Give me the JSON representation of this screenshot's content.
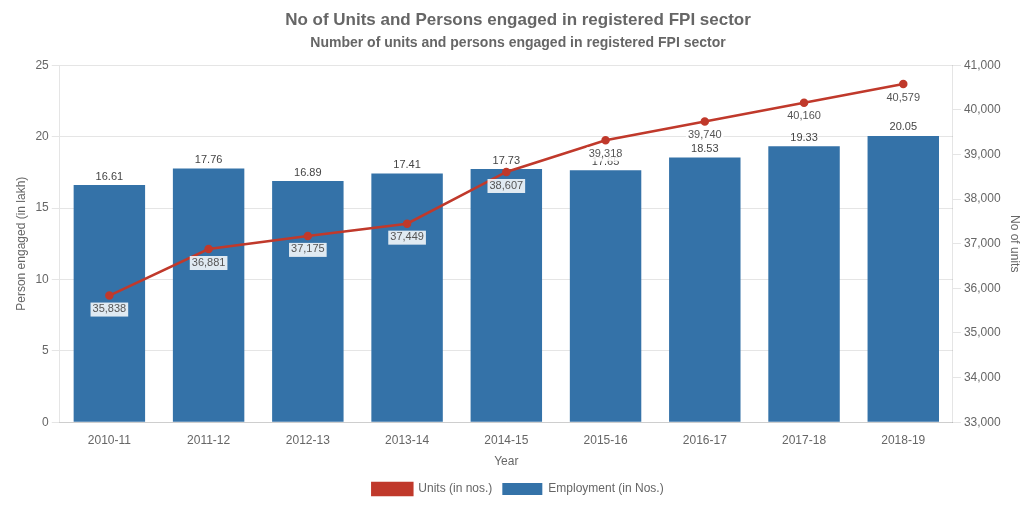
{
  "chart_data": {
    "type": "bar",
    "title": "No of Units and Persons engaged in registered FPI sector",
    "subtitle": "Number of units and persons engaged in registered FPI sector",
    "xlabel": "Year",
    "ylabel": "Person engaged (in lakh)",
    "y2label": "No of units",
    "categories": [
      "2010-11",
      "2011-12",
      "2012-13",
      "2013-14",
      "2014-15",
      "2015-16",
      "2016-17",
      "2017-18",
      "2018-19"
    ],
    "series": [
      {
        "name": "Employment (in Nos.)",
        "type": "bar",
        "color": "#3472A8",
        "values": [
          16.61,
          17.76,
          16.89,
          17.41,
          17.73,
          17.65,
          18.53,
          19.33,
          20.05
        ]
      },
      {
        "name": "Units (in nos.)",
        "type": "line",
        "color": "#C0392B",
        "axis": "y2",
        "values": [
          35838,
          36881,
          37175,
          37449,
          38607,
          39318,
          39740,
          40160,
          40579
        ],
        "value_labels": [
          "35,838",
          "36,881",
          "37,175",
          "37,449",
          "38,607",
          "39,318",
          "39,740",
          "40,160",
          "40,579"
        ]
      }
    ],
    "ylim": [
      0,
      25
    ],
    "yticks": [
      0,
      5,
      10,
      15,
      20,
      25
    ],
    "y2lim": [
      33000,
      41000
    ],
    "y2ticks": [
      {
        "value": 33000,
        "label": "33,000"
      },
      {
        "value": 34000,
        "label": "34,000"
      },
      {
        "value": 35000,
        "label": "35,000"
      },
      {
        "value": 36000,
        "label": "36,000"
      },
      {
        "value": 37000,
        "label": "37,000"
      },
      {
        "value": 38000,
        "label": "38,000"
      },
      {
        "value": 39000,
        "label": "39,000"
      },
      {
        "value": 40000,
        "label": "40,000"
      },
      {
        "value": 41000,
        "label": "41,000"
      }
    ],
    "grid": true,
    "legend": "bottom",
    "data_labels": true
  }
}
